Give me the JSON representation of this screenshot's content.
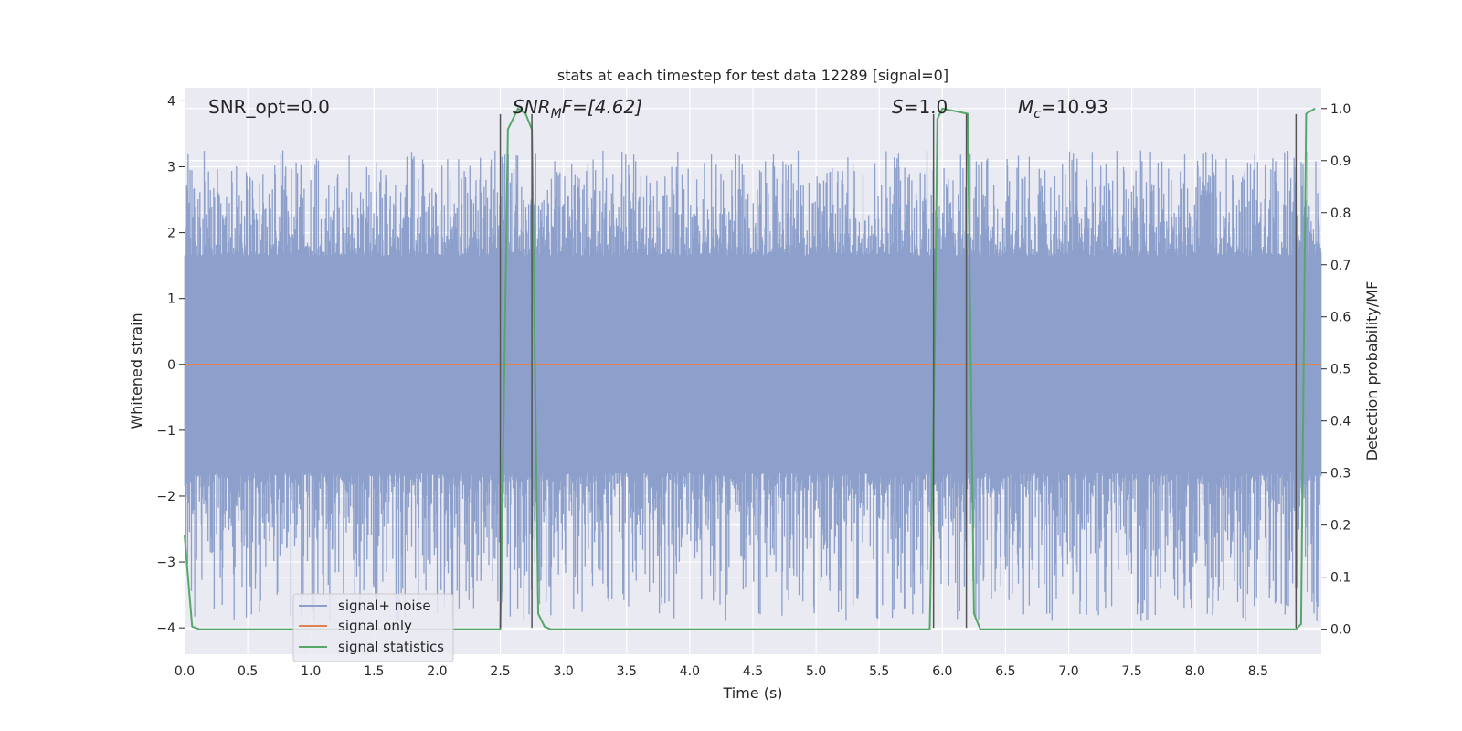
{
  "chart_data": {
    "type": "line",
    "title": "stats at each timestep for test data 12289 [signal=0]",
    "xlabel": "Time (s)",
    "ylabel": "Whitened strain",
    "ylabel_right": "Detection probability/MF",
    "xlim": [
      0.0,
      9.0
    ],
    "ylim": [
      -4.4,
      4.2
    ],
    "ylim_right": [
      -0.048,
      1.04
    ],
    "x_ticks": [
      0.0,
      0.5,
      1.0,
      1.5,
      2.0,
      2.5,
      3.0,
      3.5,
      4.0,
      4.5,
      5.0,
      5.5,
      6.0,
      6.5,
      7.0,
      7.5,
      8.0,
      8.5
    ],
    "x_tick_labels": [
      "0.0",
      "0.5",
      "1.0",
      "1.5",
      "2.0",
      "2.5",
      "3.0",
      "3.5",
      "4.0",
      "4.5",
      "5.0",
      "5.5",
      "6.0",
      "6.5",
      "7.0",
      "7.5",
      "8.0",
      "8.5"
    ],
    "y_ticks": [
      4,
      3,
      2,
      1,
      0,
      -1,
      -2,
      -3,
      -4
    ],
    "y_tick_labels": [
      "4",
      "3",
      "2",
      "1",
      "0",
      "−1",
      "−2",
      "−3",
      "−4"
    ],
    "y_right_ticks": [
      1.0,
      0.9,
      0.8,
      0.7,
      0.6,
      0.5,
      0.4,
      0.3,
      0.2,
      0.1,
      0.0
    ],
    "y_right_tick_labels": [
      "1.0",
      "0.9",
      "0.8",
      "0.7",
      "0.6",
      "0.5",
      "0.4",
      "0.3",
      "0.2",
      "0.1",
      "0.0"
    ],
    "grid": true,
    "annotations": {
      "snr_opt": "SNR_opt=0.0",
      "snr_mf_prefix": "SNR",
      "snr_mf_sub": "M",
      "snr_mf_suffix": "F=[4.62]",
      "s_prefix": "S",
      "s_suffix": "=1.0",
      "mc_prefix": "M",
      "mc_sub": "c",
      "mc_suffix": "=10.93"
    },
    "legend": {
      "placement": "lower-left",
      "entries": [
        "signal+ noise",
        "signal only",
        "signal statistics"
      ]
    },
    "series": [
      {
        "name": "signal+ noise",
        "color": "#8da0cb",
        "noise_model": {
          "band": [
            -1.65,
            1.65
          ],
          "spike_max": [
            3.25,
            -3.9
          ]
        }
      },
      {
        "name": "signal only",
        "color": "#dd8452",
        "x": [
          0.0,
          9.0
        ],
        "values": [
          0.0,
          0.0
        ]
      },
      {
        "name": "signal statistics",
        "color": "#55a868",
        "axis": "right",
        "x": [
          0.0,
          0.06,
          0.12,
          2.5,
          2.52,
          2.56,
          2.64,
          2.7,
          2.75,
          2.8,
          2.85,
          2.9,
          5.9,
          5.94,
          5.96,
          6.0,
          6.2,
          6.25,
          6.3,
          8.8,
          8.84,
          8.88,
          8.95
        ],
        "values": [
          0.18,
          0.005,
          0.0,
          0.0,
          0.3,
          0.96,
          1.0,
          0.99,
          0.96,
          0.03,
          0.005,
          0.0,
          0.0,
          0.55,
          0.98,
          1.0,
          0.99,
          0.03,
          0.0,
          0.0,
          0.01,
          0.99,
          1.0
        ]
      }
    ],
    "vertical_markers": {
      "color": "#555555",
      "x": [
        2.5,
        2.75,
        5.93,
        6.19,
        8.8
      ],
      "y_range": [
        -4.0,
        3.8
      ]
    }
  }
}
